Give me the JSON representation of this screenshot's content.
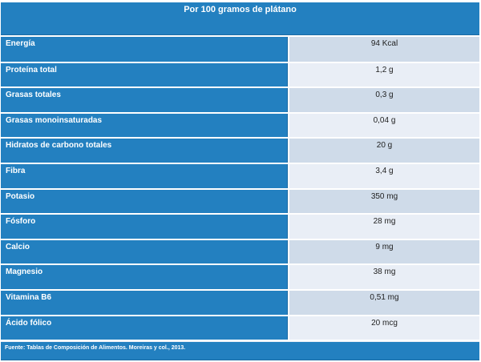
{
  "table": {
    "title": "Por 100 gramos de plátano",
    "rows": [
      {
        "nutrient": "Energía",
        "value": "94 Kcal"
      },
      {
        "nutrient": "Proteína total",
        "value": "1,2 g"
      },
      {
        "nutrient": "Grasas totales",
        "value": "0,3 g"
      },
      {
        "nutrient": "Grasas monoinsaturadas",
        "value": "0,04 g"
      },
      {
        "nutrient": "Hidratos de carbono totales",
        "value": "20 g"
      },
      {
        "nutrient": "Fibra",
        "value": "3,4 g"
      },
      {
        "nutrient": "Potasio",
        "value": "350 mg"
      },
      {
        "nutrient": "Fósforo",
        "value": "28 mg"
      },
      {
        "nutrient": "Calcio",
        "value": "9 mg"
      },
      {
        "nutrient": "Magnesio",
        "value": "38 mg"
      },
      {
        "nutrient": "Vitamina B6",
        "value": "0,51 mg"
      },
      {
        "nutrient": "Ácido fólico",
        "value": "20 mcg"
      }
    ],
    "footer": "Fuente: Tablas de Composición de Alimentos. Moreiras y col., 2013."
  },
  "colors": {
    "header_blue": "#2380c0",
    "value_dark": "#cfdbe9",
    "value_light": "#e9eef6"
  }
}
